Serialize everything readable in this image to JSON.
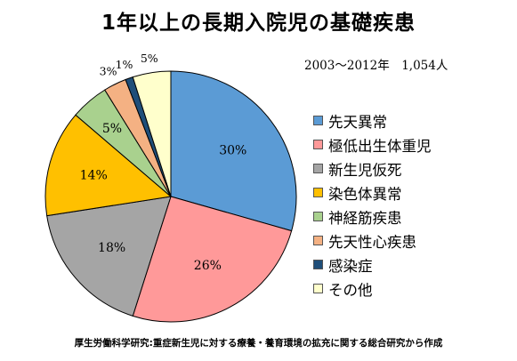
{
  "title": "1年以上の長期入院児の基礎疾患",
  "subtitle": "2003～2012年　1,054人",
  "source": "厚生労働科学研究:重症新生児に対する療養・養育環境の拡充に関する総合研究から作成",
  "chart_data": {
    "type": "pie",
    "start_angle": "12 o'clock",
    "direction": "clockwise",
    "legend_position": "right",
    "slices": [
      {
        "name": "先天異常",
        "value": 30,
        "label": "30%",
        "color": "#5B9BD5"
      },
      {
        "name": "極低出生体重児",
        "value": 26,
        "label": "26%",
        "color": "#FF9999"
      },
      {
        "name": "新生児仮死",
        "value": 18,
        "label": "18%",
        "color": "#A5A5A5"
      },
      {
        "name": "染色体異常",
        "value": 14,
        "label": "14%",
        "color": "#FFC000"
      },
      {
        "name": "神経筋疾患",
        "value": 5,
        "label": "5%",
        "color": "#A9D18E"
      },
      {
        "name": "先天性心疾患",
        "value": 3,
        "label": "3%",
        "color": "#F4B183"
      },
      {
        "name": "感染症",
        "value": 1,
        "label": "1%",
        "color": "#1F4E79"
      },
      {
        "name": "その他",
        "value": 5,
        "label": "5%",
        "color": "#FFFFCC"
      }
    ]
  }
}
